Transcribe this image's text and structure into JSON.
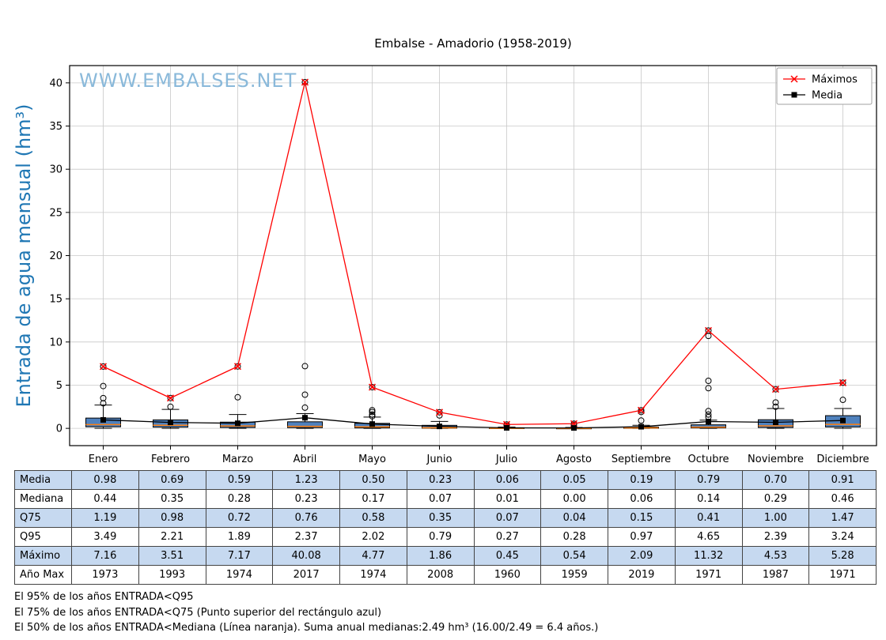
{
  "chart": {
    "title": "Embalse - Amadorio (1958-2019)",
    "watermark": "WWW.EMBALSES.NET",
    "ylabel": "Entrada de agua mensual (hm³)",
    "colors": {
      "box_fill": "#4f81bd",
      "median_line": "#ff7f0e",
      "maximos_line": "#ff0000",
      "media_line": "#000000",
      "grid": "#c8c8c8",
      "watermark": "#8ab9da",
      "ylabel": "#1f77b4",
      "legend_border": "#a0a0a0"
    },
    "legend": [
      {
        "label": "Máximos",
        "marker": "x",
        "color": "#ff0000"
      },
      {
        "label": "Media",
        "marker": "square",
        "color": "#000000"
      }
    ]
  },
  "chart_data": {
    "type": "boxplot+line",
    "categories": [
      "Enero",
      "Febrero",
      "Marzo",
      "Abril",
      "Mayo",
      "Junio",
      "Julio",
      "Agosto",
      "Septiembre",
      "Octubre",
      "Noviembre",
      "Diciembre"
    ],
    "ylim": [
      -2,
      42
    ],
    "yticks": [
      0,
      5,
      10,
      15,
      20,
      25,
      30,
      35,
      40
    ],
    "grid": true,
    "legend_position": "top-right",
    "series": [
      {
        "name": "Máximos",
        "marker": "x",
        "color": "#ff0000",
        "values": [
          7.16,
          3.51,
          7.17,
          40.08,
          4.77,
          1.86,
          0.45,
          0.54,
          2.09,
          11.32,
          4.53,
          5.28
        ]
      },
      {
        "name": "Media",
        "marker": "square",
        "color": "#000000",
        "values": [
          0.98,
          0.69,
          0.59,
          1.23,
          0.5,
          0.23,
          0.06,
          0.05,
          0.19,
          0.79,
          0.7,
          0.91
        ]
      }
    ],
    "boxplot": {
      "median": [
        0.44,
        0.35,
        0.28,
        0.23,
        0.17,
        0.07,
        0.01,
        0.0,
        0.06,
        0.14,
        0.29,
        0.46
      ],
      "q25": [
        0.18,
        0.14,
        0.1,
        0.08,
        0.05,
        0.02,
        0.0,
        0.0,
        0.01,
        0.05,
        0.1,
        0.16
      ],
      "q75": [
        1.19,
        0.98,
        0.72,
        0.76,
        0.58,
        0.35,
        0.07,
        0.04,
        0.15,
        0.41,
        1.0,
        1.47
      ],
      "whisker_low": [
        0,
        0,
        0,
        0,
        0,
        0,
        0,
        0,
        0,
        0,
        0,
        0
      ],
      "whisker_high": [
        2.7,
        2.2,
        1.6,
        1.7,
        1.3,
        0.8,
        0.15,
        0.1,
        0.35,
        0.95,
        2.3,
        2.3
      ],
      "outliers": [
        [
          2.9,
          3.5,
          4.9,
          7.16
        ],
        [
          2.5,
          3.51
        ],
        [
          3.6,
          7.17
        ],
        [
          2.4,
          3.9,
          7.2,
          40.08
        ],
        [
          1.4,
          1.6,
          1.9,
          2.1,
          4.77
        ],
        [
          1.5,
          1.86
        ],
        [
          0.3,
          0.45
        ],
        [
          0.4,
          0.54
        ],
        [
          0.9,
          1.9,
          2.09
        ],
        [
          1.3,
          1.6,
          2.0,
          4.65,
          5.5,
          10.7,
          11.32
        ],
        [
          2.5,
          3.0,
          4.53
        ],
        [
          3.3,
          5.28
        ]
      ]
    }
  },
  "table": {
    "alt_fill": "#c6d9f0",
    "rows": [
      {
        "label": "Media",
        "values": [
          "0.98",
          "0.69",
          "0.59",
          "1.23",
          "0.50",
          "0.23",
          "0.06",
          "0.05",
          "0.19",
          "0.79",
          "0.70",
          "0.91"
        ]
      },
      {
        "label": "Mediana",
        "values": [
          "0.44",
          "0.35",
          "0.28",
          "0.23",
          "0.17",
          "0.07",
          "0.01",
          "0.00",
          "0.06",
          "0.14",
          "0.29",
          "0.46"
        ]
      },
      {
        "label": "Q75",
        "values": [
          "1.19",
          "0.98",
          "0.72",
          "0.76",
          "0.58",
          "0.35",
          "0.07",
          "0.04",
          "0.15",
          "0.41",
          "1.00",
          "1.47"
        ]
      },
      {
        "label": "Q95",
        "values": [
          "3.49",
          "2.21",
          "1.89",
          "2.37",
          "2.02",
          "0.79",
          "0.27",
          "0.28",
          "0.97",
          "4.65",
          "2.39",
          "3.24"
        ]
      },
      {
        "label": "Máximo",
        "values": [
          "7.16",
          "3.51",
          "7.17",
          "40.08",
          "4.77",
          "1.86",
          "0.45",
          "0.54",
          "2.09",
          "11.32",
          "4.53",
          "5.28"
        ]
      },
      {
        "label": "Año Max",
        "values": [
          "1973",
          "1993",
          "1974",
          "2017",
          "1974",
          "2008",
          "1960",
          "1959",
          "2019",
          "1971",
          "1987",
          "1971"
        ]
      }
    ]
  },
  "footnotes": [
    "El 95% de los años ENTRADA<Q95",
    "El 75% de los años ENTRADA<Q75 (Punto superior del rectángulo azul)",
    "El 50% de los años ENTRADA<Mediana (Línea naranja). Suma anual medianas:2.49 hm³ (16.00/2.49 = 6.4 años.)"
  ]
}
